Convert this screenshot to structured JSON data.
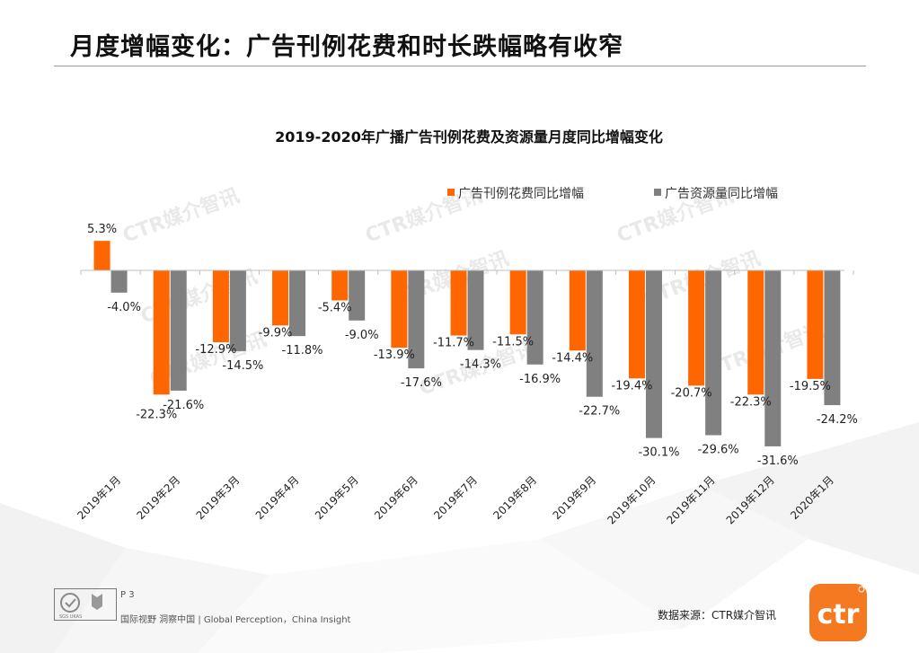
{
  "page": {
    "title": "月度增幅变化：广告刊例花费和时长跌幅略有收窄",
    "page_number": "P 3",
    "tagline": "国际视野  洞察中国 |  Global Perception，China  Insight",
    "source": "数据来源：CTR媒介智讯",
    "logo_text": "ctr",
    "cert_text": "SGS  UKAS"
  },
  "watermark": "CTR媒介智讯",
  "colors": {
    "series1": "#FF6600",
    "series2": "#808080",
    "accent": "#F47920"
  },
  "chart_data": {
    "type": "bar",
    "title": "2019-2020年广播广告刊例花费及资源量月度同比增幅变化",
    "categories": [
      "2019年1月",
      "2019年2月",
      "2019年3月",
      "2019年4月",
      "2019年5月",
      "2019年6月",
      "2019年7月",
      "2019年8月",
      "2019年9月",
      "2019年10月",
      "2019年11月",
      "2019年12月",
      "2020年1月"
    ],
    "series": [
      {
        "name": "广告刊例花费同比增幅",
        "values": [
          5.3,
          -22.3,
          -12.9,
          -9.9,
          -5.4,
          -13.9,
          -11.7,
          -11.5,
          -14.4,
          -19.4,
          -20.7,
          -22.3,
          -19.5
        ],
        "labels": [
          "5.3%",
          "-22.3%",
          "-12.9%",
          "-9.9%",
          "-5.4%",
          "-13.9%",
          "-11.7%",
          "-11.5%",
          "-14.4%",
          "-19.4%",
          "-20.7%",
          "-22.3%",
          "-19.5%"
        ]
      },
      {
        "name": "广告资源量同比增幅",
        "values": [
          -4.0,
          -21.6,
          -14.5,
          -11.8,
          -9.0,
          -17.6,
          -14.3,
          -16.9,
          -22.7,
          -30.1,
          -29.6,
          -31.6,
          -24.2
        ],
        "labels": [
          "-4.0%",
          "-21.6%",
          "-14.5%",
          "-11.8%",
          "-9.0%",
          "-17.6%",
          "-14.3%",
          "-16.9%",
          "-22.7%",
          "-30.1%",
          "-29.6%",
          "-31.6%",
          "-24.2%"
        ]
      }
    ],
    "xlabel": "",
    "ylabel": "",
    "ylim": [
      -36,
      6
    ],
    "legend": "top-right",
    "grid": false
  }
}
